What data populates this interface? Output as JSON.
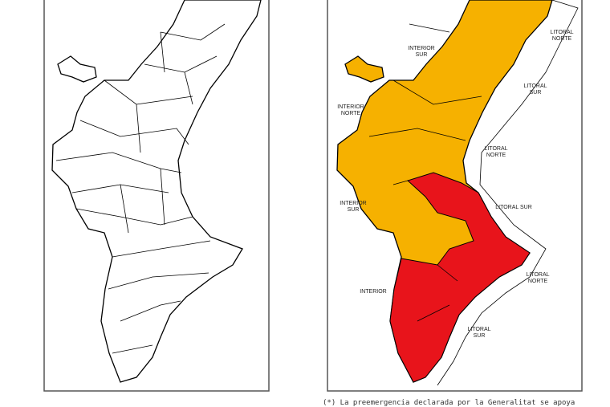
{
  "map": {
    "labels": [
      {
        "lines": [
          "INTERIOR",
          "SUR"
        ]
      },
      {
        "lines": [
          "LITORAL",
          "NORTE"
        ]
      },
      {
        "lines": [
          "LITORAL",
          "SUR"
        ]
      },
      {
        "lines": [
          "INTERIOR",
          "NORTE"
        ]
      },
      {
        "lines": [
          "LITORAL",
          "NORTE"
        ]
      },
      {
        "lines": [
          "INTERIOR",
          "SUR"
        ]
      },
      {
        "lines": [
          "LITORAL SUR"
        ]
      },
      {
        "lines": [
          "LITORAL",
          "NORTE"
        ]
      },
      {
        "lines": [
          "INTERIOR"
        ]
      },
      {
        "lines": [
          "LITORAL",
          "SUR"
        ]
      }
    ],
    "footnote": "(*) La preemergencia declarada por la Generalitat se apoya"
  }
}
